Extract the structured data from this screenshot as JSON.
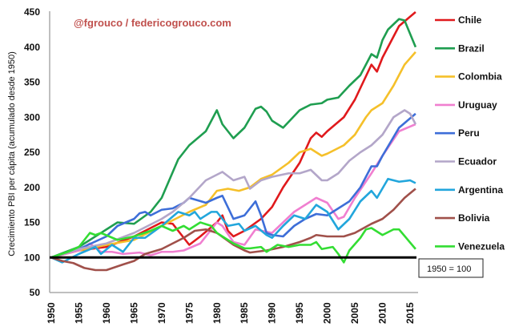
{
  "chart_data": {
    "type": "line",
    "watermark": "@fgrouco / federicogrouco.com",
    "ylabel": "Crecimiento PBI per cápita (acumulado desde 1950)",
    "xlabel": "",
    "xlim": [
      1950,
      2016
    ],
    "ylim": [
      50,
      450
    ],
    "yticks": [
      "50",
      "100",
      "150",
      "200",
      "250",
      "300",
      "350",
      "400",
      "450"
    ],
    "xticks": [
      "1950",
      "1955",
      "1960",
      "1965",
      "1970",
      "1975",
      "1980",
      "1985",
      "1990",
      "1995",
      "2000",
      "2005",
      "2010",
      "2015"
    ],
    "baseline": 100,
    "baseline_note": "1950 = 100",
    "grid": false,
    "legend_position": "right",
    "series": [
      {
        "name": "Chile",
        "color": "#e0191c",
        "points": [
          [
            1950,
            100
          ],
          [
            1955,
            110
          ],
          [
            1960,
            115
          ],
          [
            1965,
            130
          ],
          [
            1970,
            150
          ],
          [
            1972,
            148
          ],
          [
            1973,
            138
          ],
          [
            1975,
            118
          ],
          [
            1977,
            130
          ],
          [
            1980,
            150
          ],
          [
            1981,
            160
          ],
          [
            1982,
            138
          ],
          [
            1983,
            130
          ],
          [
            1985,
            138
          ],
          [
            1988,
            155
          ],
          [
            1990,
            172
          ],
          [
            1992,
            200
          ],
          [
            1995,
            235
          ],
          [
            1997,
            270
          ],
          [
            1998,
            278
          ],
          [
            1999,
            272
          ],
          [
            2000,
            280
          ],
          [
            2003,
            300
          ],
          [
            2005,
            325
          ],
          [
            2008,
            375
          ],
          [
            2009,
            365
          ],
          [
            2010,
            385
          ],
          [
            2013,
            430
          ],
          [
            2016,
            450
          ]
        ]
      },
      {
        "name": "Brazil",
        "color": "#1f9e50",
        "points": [
          [
            1950,
            100
          ],
          [
            1955,
            115
          ],
          [
            1960,
            140
          ],
          [
            1962,
            150
          ],
          [
            1965,
            148
          ],
          [
            1968,
            165
          ],
          [
            1970,
            185
          ],
          [
            1973,
            240
          ],
          [
            1975,
            260
          ],
          [
            1978,
            280
          ],
          [
            1980,
            310
          ],
          [
            1981,
            290
          ],
          [
            1983,
            270
          ],
          [
            1985,
            285
          ],
          [
            1987,
            312
          ],
          [
            1988,
            315
          ],
          [
            1989,
            308
          ],
          [
            1990,
            295
          ],
          [
            1992,
            285
          ],
          [
            1995,
            310
          ],
          [
            1997,
            318
          ],
          [
            1999,
            320
          ],
          [
            2000,
            325
          ],
          [
            2002,
            328
          ],
          [
            2004,
            345
          ],
          [
            2006,
            360
          ],
          [
            2008,
            390
          ],
          [
            2009,
            385
          ],
          [
            2010,
            410
          ],
          [
            2011,
            425
          ],
          [
            2013,
            440
          ],
          [
            2014,
            438
          ],
          [
            2016,
            400
          ]
        ]
      },
      {
        "name": "Colombia",
        "color": "#f5c02a",
        "points": [
          [
            1950,
            100
          ],
          [
            1955,
            110
          ],
          [
            1960,
            118
          ],
          [
            1965,
            125
          ],
          [
            1970,
            145
          ],
          [
            1975,
            165
          ],
          [
            1978,
            175
          ],
          [
            1980,
            195
          ],
          [
            1982,
            198
          ],
          [
            1984,
            195
          ],
          [
            1986,
            200
          ],
          [
            1988,
            212
          ],
          [
            1990,
            218
          ],
          [
            1993,
            235
          ],
          [
            1995,
            250
          ],
          [
            1997,
            255
          ],
          [
            1999,
            245
          ],
          [
            2000,
            248
          ],
          [
            2003,
            260
          ],
          [
            2005,
            275
          ],
          [
            2007,
            300
          ],
          [
            2008,
            310
          ],
          [
            2010,
            320
          ],
          [
            2012,
            345
          ],
          [
            2014,
            375
          ],
          [
            2016,
            393
          ]
        ]
      },
      {
        "name": "Uruguay",
        "color": "#f07fd0",
        "points": [
          [
            1950,
            100
          ],
          [
            1955,
            110
          ],
          [
            1957,
            120
          ],
          [
            1959,
            108
          ],
          [
            1961,
            108
          ],
          [
            1963,
            105
          ],
          [
            1966,
            107
          ],
          [
            1968,
            103
          ],
          [
            1970,
            108
          ],
          [
            1972,
            108
          ],
          [
            1974,
            110
          ],
          [
            1977,
            120
          ],
          [
            1980,
            150
          ],
          [
            1981,
            145
          ],
          [
            1983,
            122
          ],
          [
            1985,
            118
          ],
          [
            1987,
            140
          ],
          [
            1990,
            135
          ],
          [
            1992,
            150
          ],
          [
            1994,
            165
          ],
          [
            1996,
            175
          ],
          [
            1998,
            185
          ],
          [
            2000,
            178
          ],
          [
            2002,
            155
          ],
          [
            2003,
            158
          ],
          [
            2005,
            185
          ],
          [
            2008,
            220
          ],
          [
            2010,
            245
          ],
          [
            2013,
            280
          ],
          [
            2016,
            290
          ]
        ]
      },
      {
        "name": "Peru",
        "color": "#3d6ed8",
        "points": [
          [
            1950,
            100
          ],
          [
            1955,
            112
          ],
          [
            1960,
            130
          ],
          [
            1962,
            145
          ],
          [
            1965,
            155
          ],
          [
            1966,
            163
          ],
          [
            1967,
            165
          ],
          [
            1968,
            160
          ],
          [
            1970,
            168
          ],
          [
            1972,
            170
          ],
          [
            1974,
            178
          ],
          [
            1975,
            185
          ],
          [
            1978,
            178
          ],
          [
            1980,
            185
          ],
          [
            1981,
            188
          ],
          [
            1983,
            155
          ],
          [
            1985,
            160
          ],
          [
            1987,
            180
          ],
          [
            1988,
            160
          ],
          [
            1989,
            135
          ],
          [
            1990,
            132
          ],
          [
            1992,
            130
          ],
          [
            1994,
            145
          ],
          [
            1996,
            155
          ],
          [
            1998,
            162
          ],
          [
            2000,
            160
          ],
          [
            2002,
            170
          ],
          [
            2004,
            180
          ],
          [
            2006,
            200
          ],
          [
            2008,
            230
          ],
          [
            2009,
            230
          ],
          [
            2010,
            245
          ],
          [
            2013,
            285
          ],
          [
            2016,
            305
          ]
        ]
      },
      {
        "name": "Ecuador",
        "color": "#b3a6c9",
        "points": [
          [
            1950,
            100
          ],
          [
            1955,
            112
          ],
          [
            1960,
            120
          ],
          [
            1965,
            135
          ],
          [
            1970,
            155
          ],
          [
            1972,
            165
          ],
          [
            1975,
            185
          ],
          [
            1978,
            210
          ],
          [
            1981,
            222
          ],
          [
            1983,
            210
          ],
          [
            1985,
            215
          ],
          [
            1986,
            198
          ],
          [
            1988,
            210
          ],
          [
            1990,
            215
          ],
          [
            1993,
            220
          ],
          [
            1995,
            220
          ],
          [
            1997,
            225
          ],
          [
            1999,
            210
          ],
          [
            2000,
            210
          ],
          [
            2002,
            220
          ],
          [
            2004,
            238
          ],
          [
            2006,
            250
          ],
          [
            2008,
            260
          ],
          [
            2010,
            275
          ],
          [
            2012,
            300
          ],
          [
            2014,
            310
          ],
          [
            2015,
            305
          ],
          [
            2016,
            290
          ]
        ]
      },
      {
        "name": "Argentina",
        "color": "#22a6dc",
        "points": [
          [
            1950,
            100
          ],
          [
            1952,
            93
          ],
          [
            1955,
            105
          ],
          [
            1958,
            115
          ],
          [
            1959,
            105
          ],
          [
            1961,
            118
          ],
          [
            1963,
            108
          ],
          [
            1965,
            128
          ],
          [
            1967,
            128
          ],
          [
            1970,
            145
          ],
          [
            1973,
            165
          ],
          [
            1975,
            160
          ],
          [
            1976,
            165
          ],
          [
            1977,
            155
          ],
          [
            1979,
            165
          ],
          [
            1980,
            165
          ],
          [
            1982,
            145
          ],
          [
            1984,
            148
          ],
          [
            1985,
            138
          ],
          [
            1987,
            145
          ],
          [
            1989,
            132
          ],
          [
            1990,
            128
          ],
          [
            1992,
            145
          ],
          [
            1994,
            160
          ],
          [
            1996,
            155
          ],
          [
            1998,
            175
          ],
          [
            2000,
            165
          ],
          [
            2002,
            140
          ],
          [
            2004,
            155
          ],
          [
            2006,
            180
          ],
          [
            2008,
            195
          ],
          [
            2009,
            185
          ],
          [
            2011,
            212
          ],
          [
            2013,
            208
          ],
          [
            2015,
            210
          ],
          [
            2016,
            206
          ]
        ]
      },
      {
        "name": "Bolivia",
        "color": "#a0504a",
        "points": [
          [
            1950,
            100
          ],
          [
            1952,
            95
          ],
          [
            1954,
            92
          ],
          [
            1956,
            85
          ],
          [
            1958,
            82
          ],
          [
            1960,
            82
          ],
          [
            1963,
            90
          ],
          [
            1965,
            95
          ],
          [
            1967,
            105
          ],
          [
            1970,
            112
          ],
          [
            1972,
            120
          ],
          [
            1974,
            128
          ],
          [
            1976,
            138
          ],
          [
            1978,
            140
          ],
          [
            1980,
            135
          ],
          [
            1983,
            118
          ],
          [
            1985,
            110
          ],
          [
            1986,
            107
          ],
          [
            1989,
            110
          ],
          [
            1992,
            115
          ],
          [
            1995,
            122
          ],
          [
            1997,
            128
          ],
          [
            1998,
            132
          ],
          [
            2000,
            130
          ],
          [
            2003,
            130
          ],
          [
            2005,
            135
          ],
          [
            2008,
            148
          ],
          [
            2010,
            155
          ],
          [
            2012,
            168
          ],
          [
            2014,
            185
          ],
          [
            2016,
            198
          ]
        ]
      },
      {
        "name": "Venezuela",
        "color": "#33dd33",
        "points": [
          [
            1950,
            100
          ],
          [
            1953,
            108
          ],
          [
            1955,
            115
          ],
          [
            1957,
            135
          ],
          [
            1958,
            132
          ],
          [
            1959,
            135
          ],
          [
            1962,
            125
          ],
          [
            1965,
            130
          ],
          [
            1968,
            138
          ],
          [
            1970,
            145
          ],
          [
            1972,
            138
          ],
          [
            1974,
            145
          ],
          [
            1975,
            140
          ],
          [
            1977,
            150
          ],
          [
            1979,
            145
          ],
          [
            1980,
            135
          ],
          [
            1983,
            120
          ],
          [
            1985,
            113
          ],
          [
            1986,
            113
          ],
          [
            1988,
            115
          ],
          [
            1989,
            108
          ],
          [
            1991,
            118
          ],
          [
            1993,
            115
          ],
          [
            1995,
            118
          ],
          [
            1997,
            118
          ],
          [
            1998,
            122
          ],
          [
            1999,
            112
          ],
          [
            2001,
            115
          ],
          [
            2002,
            105
          ],
          [
            2003,
            93
          ],
          [
            2004,
            110
          ],
          [
            2006,
            128
          ],
          [
            2007,
            140
          ],
          [
            2008,
            142
          ],
          [
            2010,
            132
          ],
          [
            2012,
            140
          ],
          [
            2013,
            140
          ],
          [
            2016,
            112
          ]
        ]
      }
    ]
  }
}
